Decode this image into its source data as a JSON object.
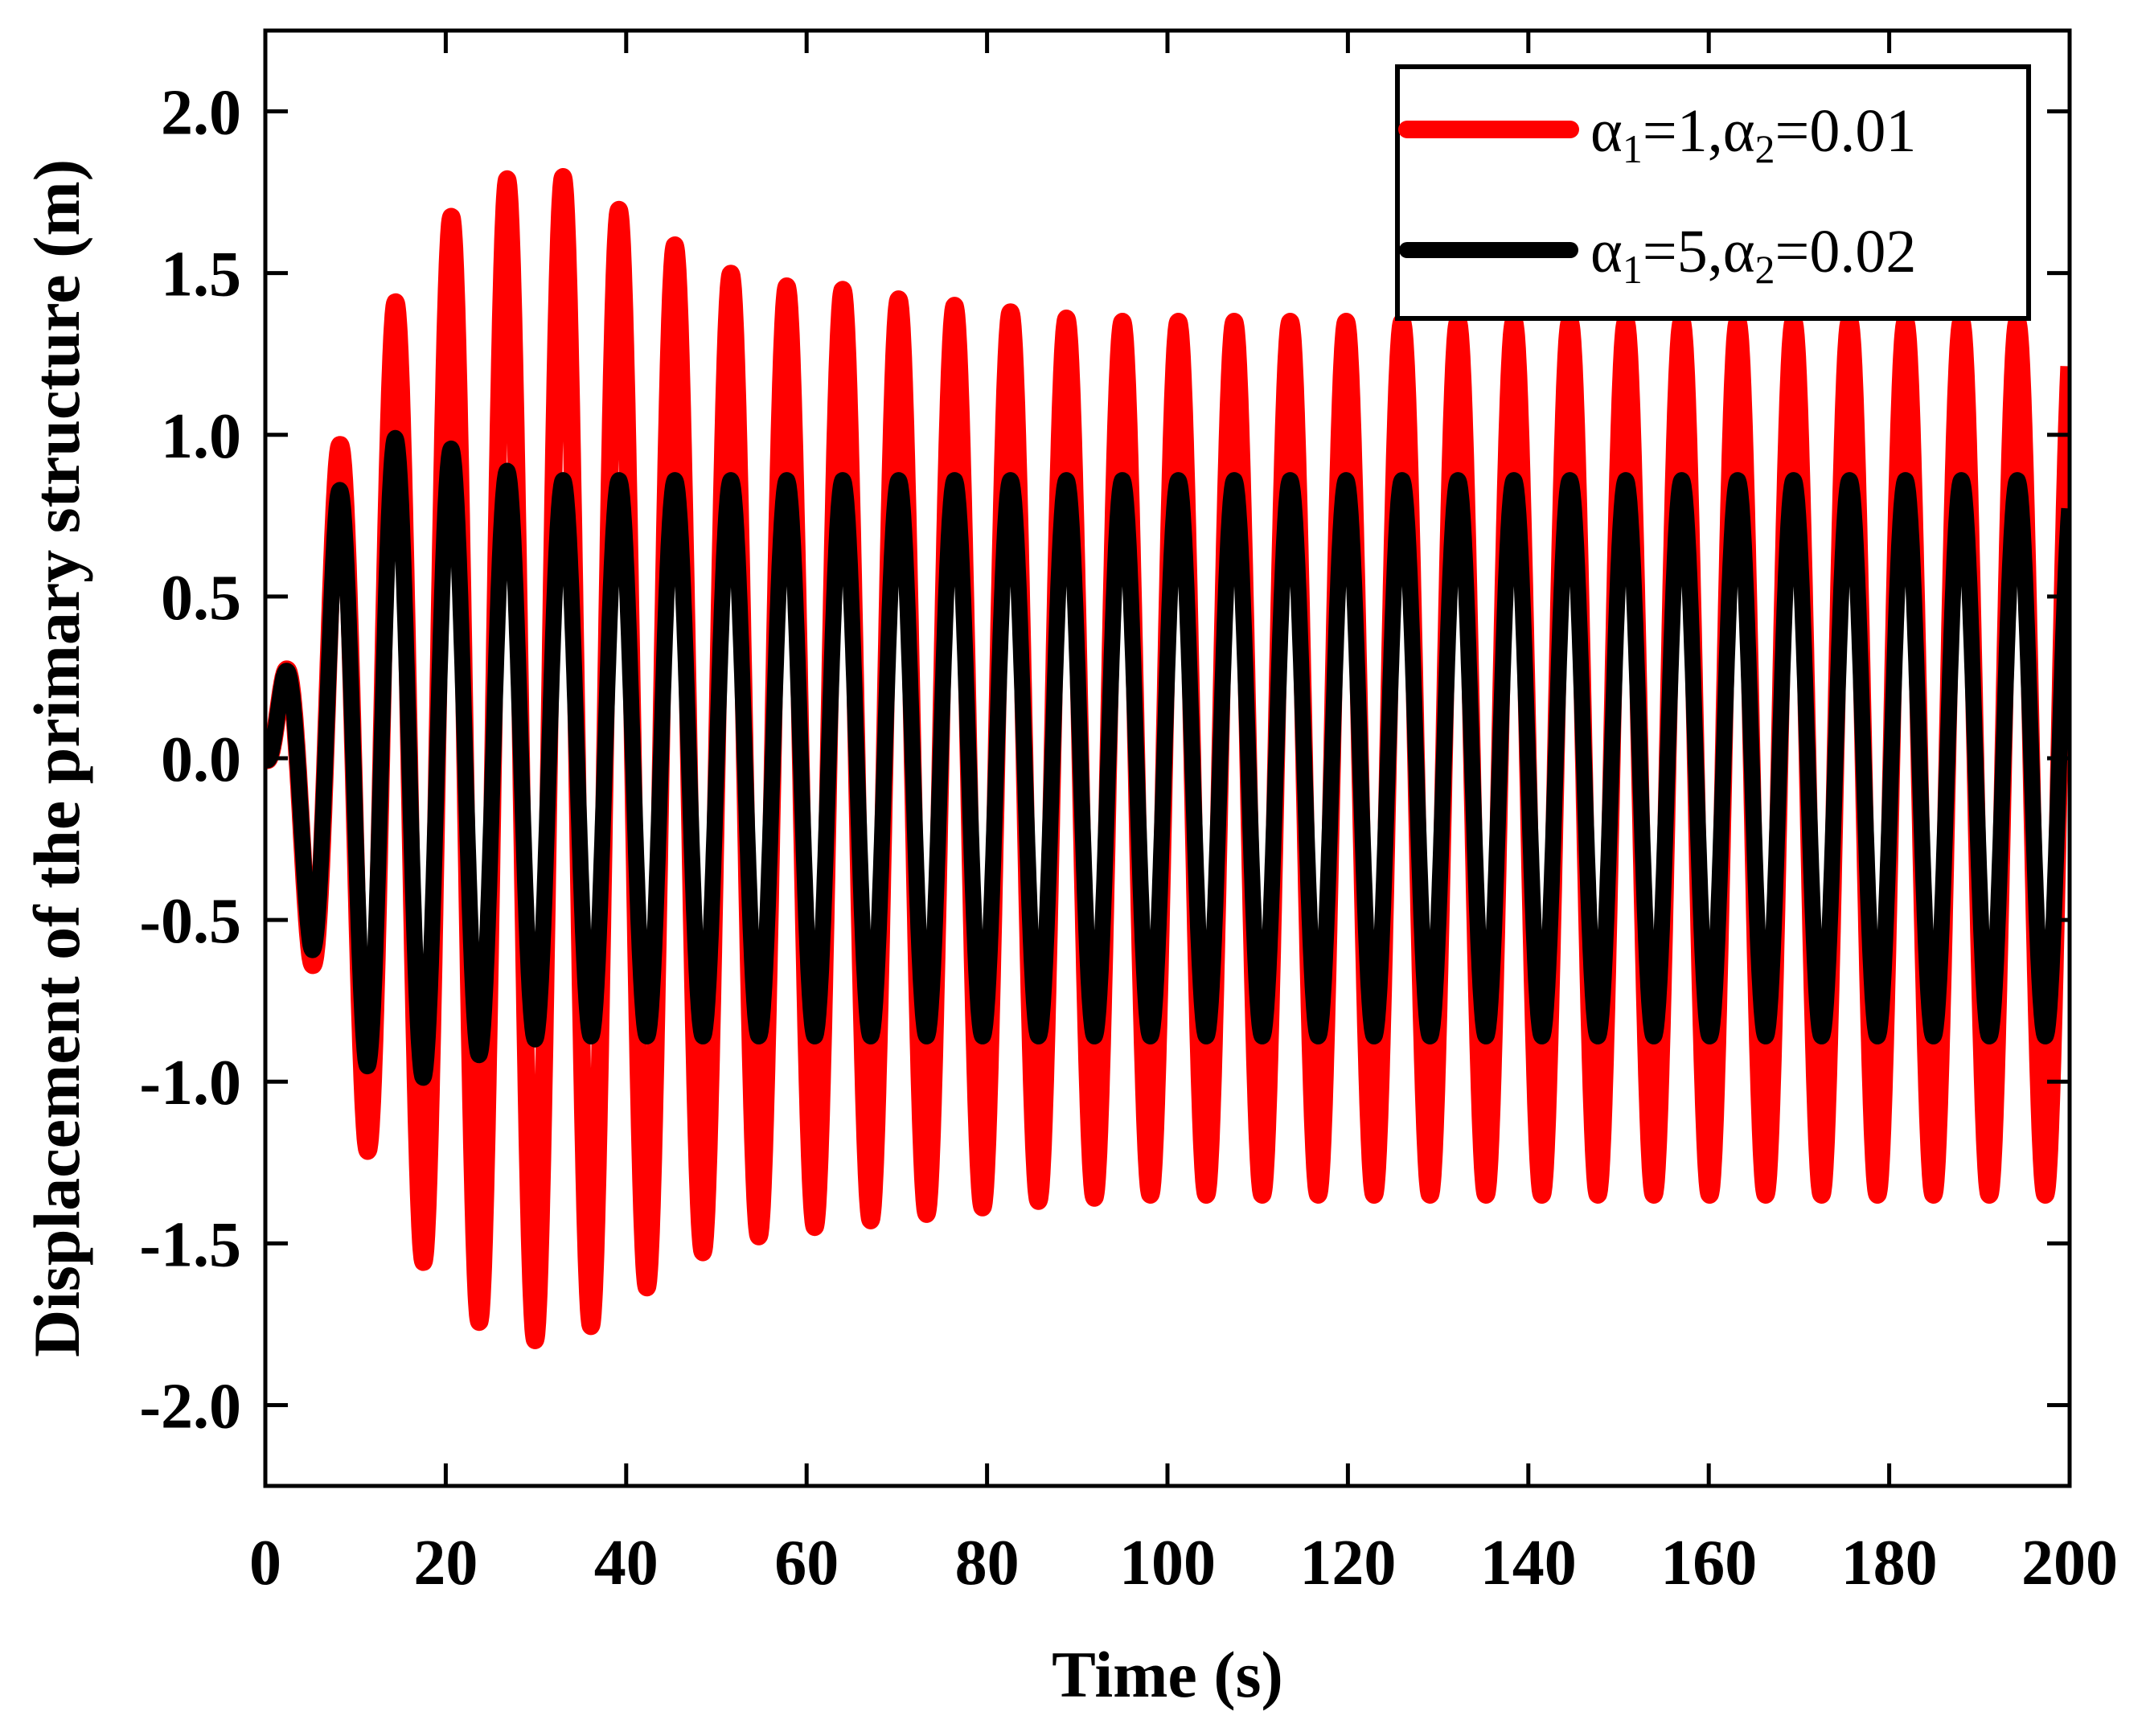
{
  "chart_data": {
    "type": "line",
    "title": "",
    "xlabel": "Time (s)",
    "ylabel": "Displacement of the primary structure (m)",
    "xlim": [
      0,
      200
    ],
    "ylim": [
      -2.25,
      2.25
    ],
    "xticks": [
      0,
      20,
      40,
      60,
      80,
      100,
      120,
      140,
      160,
      180,
      200
    ],
    "xtick_labels": [
      "0",
      "20",
      "40",
      "60",
      "80",
      "100",
      "120",
      "140",
      "160",
      "180",
      "200"
    ],
    "yticks": [
      -2.0,
      -1.5,
      -1.0,
      -0.5,
      0.0,
      0.5,
      1.0,
      1.5,
      2.0
    ],
    "ytick_labels": [
      "-2.0",
      "-1.5",
      "-1.0",
      "-0.5",
      "0.0",
      "0.5",
      "1.0",
      "1.5",
      "2.0"
    ],
    "grid": false,
    "legend_position": "top-right",
    "period_s": 6.2,
    "series": [
      {
        "name_parts": [
          [
            "α",
            "1",
            "=1,"
          ],
          [
            "α",
            "2",
            "=0.01"
          ]
        ],
        "color": "#ff0000",
        "peaks": [
          {
            "t": 2.0,
            "y": 0.25
          },
          {
            "t": 5.0,
            "y": -0.62
          },
          {
            "t": 8.0,
            "y": 0.95
          },
          {
            "t": 11.1,
            "y": -1.2
          },
          {
            "t": 14.2,
            "y": 1.4
          },
          {
            "t": 17.3,
            "y": -1.55
          },
          {
            "t": 20.4,
            "y": 1.67
          },
          {
            "t": 23.5,
            "y": -1.74
          },
          {
            "t": 26.6,
            "y": 1.79
          },
          {
            "t": 29.7,
            "y": -1.8
          },
          {
            "t": 32.8,
            "y": 1.8
          },
          {
            "t": 35.9,
            "y": -1.76
          },
          {
            "t": 39.0,
            "y": 1.7
          },
          {
            "t": 42.1,
            "y": -1.64
          },
          {
            "t": 45.2,
            "y": 1.59
          },
          {
            "t": 48.3,
            "y": -1.53
          },
          {
            "t": 51.4,
            "y": 1.5
          },
          {
            "t": 54.5,
            "y": -1.48
          },
          {
            "t": 57.6,
            "y": 1.46
          },
          {
            "t": 60.7,
            "y": -1.45
          },
          {
            "t": 63.8,
            "y": 1.45
          },
          {
            "t": 66.9,
            "y": -1.43
          },
          {
            "t": 70.0,
            "y": 1.42
          },
          {
            "t": 73.1,
            "y": -1.41
          },
          {
            "t": 76.2,
            "y": 1.4
          },
          {
            "t": 79.3,
            "y": -1.39
          },
          {
            "t": 82.4,
            "y": 1.38
          },
          {
            "t": 85.5,
            "y": -1.37
          },
          {
            "t": 88.6,
            "y": 1.36
          },
          {
            "t": 91.7,
            "y": -1.36
          },
          {
            "t": 94.8,
            "y": 1.35
          },
          {
            "t": 200.0,
            "y": 1.35
          }
        ]
      },
      {
        "name_parts": [
          [
            "α",
            "1",
            "=5,"
          ],
          [
            "α",
            "2",
            "=0.02"
          ]
        ],
        "color": "#000000",
        "peaks": [
          {
            "t": 2.0,
            "y": 0.25
          },
          {
            "t": 5.0,
            "y": -0.58
          },
          {
            "t": 8.0,
            "y": 0.82
          },
          {
            "t": 11.1,
            "y": -0.95
          },
          {
            "t": 14.2,
            "y": 0.99
          },
          {
            "t": 17.3,
            "y": -0.99
          },
          {
            "t": 20.4,
            "y": 0.96
          },
          {
            "t": 23.5,
            "y": -0.92
          },
          {
            "t": 26.6,
            "y": 0.89
          },
          {
            "t": 29.7,
            "y": -0.87
          },
          {
            "t": 32.8,
            "y": 0.86
          },
          {
            "t": 200.0,
            "y": 0.86
          }
        ]
      }
    ]
  }
}
